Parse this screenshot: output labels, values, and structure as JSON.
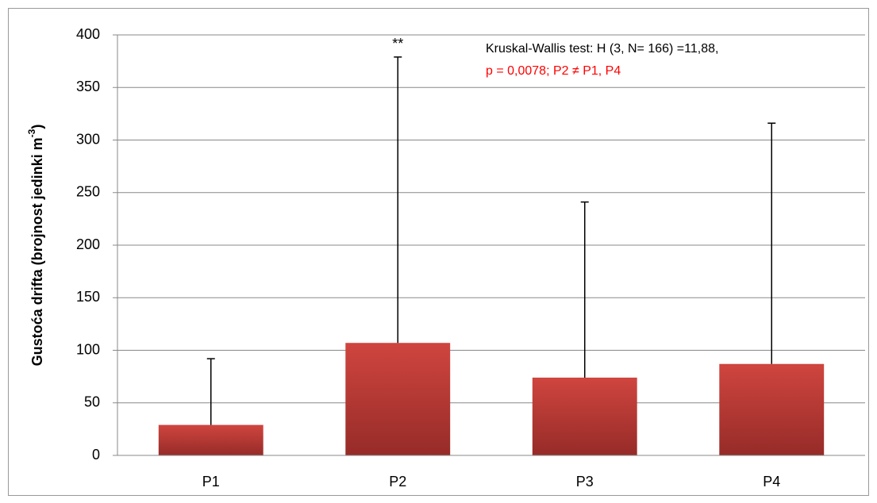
{
  "chart_data": {
    "type": "bar",
    "ylabel_parts": [
      "Gustoća drifta (brojnost jedinki m",
      "-3",
      ")"
    ],
    "categories": [
      "P1",
      "P2",
      "P3",
      "P4"
    ],
    "values": [
      29,
      107,
      74,
      87
    ],
    "errors": [
      63,
      272,
      167,
      229
    ],
    "color": "#c0392b",
    "ylim": [
      0,
      400
    ],
    "yticks": [
      0,
      50,
      100,
      150,
      200,
      250,
      300,
      350,
      400
    ],
    "grid": true,
    "annotations": [
      {
        "text": "**",
        "category": 1
      },
      {
        "text": "Kruskal-Wallis  test: H (3, N= 166) =11,88,",
        "color": "#000000"
      },
      {
        "text": "p = 0,0078; P2 ≠ P1, P4",
        "color": "#ff0000"
      }
    ]
  }
}
